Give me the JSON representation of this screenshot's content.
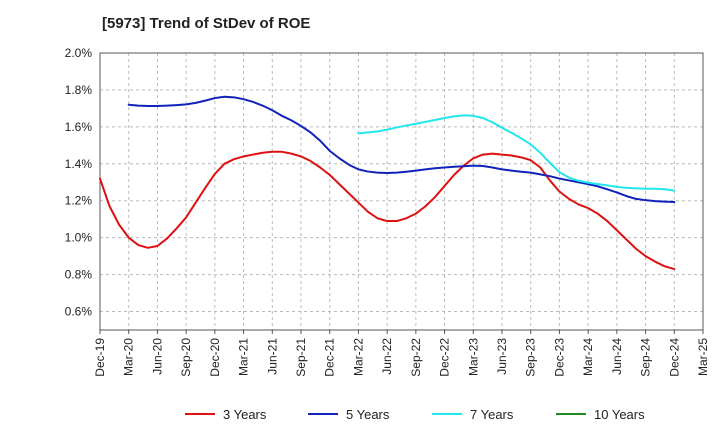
{
  "chart_data": {
    "type": "line",
    "title": "[5973]  Trend of StDev of ROE",
    "xlabel": "",
    "ylabel": "",
    "x_ticks": [
      "Dec-19",
      "Mar-20",
      "Jun-20",
      "Sep-20",
      "Dec-20",
      "Mar-21",
      "Jun-21",
      "Sep-21",
      "Dec-21",
      "Mar-22",
      "Jun-22",
      "Sep-22",
      "Dec-22",
      "Mar-23",
      "Jun-23",
      "Sep-23",
      "Dec-23",
      "Mar-24",
      "Jun-24",
      "Sep-24",
      "Dec-24",
      "Mar-25"
    ],
    "y_ticks": [
      "2.0%",
      "1.8%",
      "1.6%",
      "1.4%",
      "1.2%",
      "1.0%",
      "0.8%",
      "0.6%"
    ],
    "ylim": [
      0.5,
      2.0
    ],
    "y_unit": "%",
    "grid": "dashed both axes",
    "legend_position": "bottom",
    "series": [
      {
        "name": "3 Years",
        "color": "#dd1111",
        "points": [
          [
            "Dec-19",
            1.32
          ],
          [
            "Jan-20",
            1.17
          ],
          [
            "Feb-20",
            1.07
          ],
          [
            "Mar-20",
            1.0
          ],
          [
            "Apr-20",
            0.96
          ],
          [
            "May-20",
            0.945
          ],
          [
            "Jun-20",
            0.955
          ],
          [
            "Jul-20",
            0.995
          ],
          [
            "Aug-20",
            1.05
          ],
          [
            "Sep-20",
            1.11
          ],
          [
            "Oct-20",
            1.19
          ],
          [
            "Nov-20",
            1.27
          ],
          [
            "Dec-20",
            1.345
          ],
          [
            "Jan-21",
            1.4
          ],
          [
            "Feb-21",
            1.425
          ],
          [
            "Mar-21",
            1.44
          ],
          [
            "Apr-21",
            1.45
          ],
          [
            "May-21",
            1.46
          ],
          [
            "Jun-21",
            1.465
          ],
          [
            "Jul-21",
            1.465
          ],
          [
            "Aug-21",
            1.455
          ],
          [
            "Sep-21",
            1.44
          ],
          [
            "Oct-21",
            1.415
          ],
          [
            "Nov-21",
            1.38
          ],
          [
            "Dec-21",
            1.34
          ],
          [
            "Jan-22",
            1.29
          ],
          [
            "Feb-22",
            1.24
          ],
          [
            "Mar-22",
            1.19
          ],
          [
            "Apr-22",
            1.14
          ],
          [
            "May-22",
            1.105
          ],
          [
            "Jun-22",
            1.09
          ],
          [
            "Jul-22",
            1.09
          ],
          [
            "Aug-22",
            1.105
          ],
          [
            "Sep-22",
            1.13
          ],
          [
            "Oct-22",
            1.17
          ],
          [
            "Nov-22",
            1.22
          ],
          [
            "Dec-22",
            1.28
          ],
          [
            "Jan-23",
            1.34
          ],
          [
            "Feb-23",
            1.39
          ],
          [
            "Mar-23",
            1.43
          ],
          [
            "Apr-23",
            1.45
          ],
          [
            "May-23",
            1.455
          ],
          [
            "Jun-23",
            1.45
          ],
          [
            "Jul-23",
            1.445
          ],
          [
            "Aug-23",
            1.435
          ],
          [
            "Sep-23",
            1.42
          ],
          [
            "Oct-23",
            1.38
          ],
          [
            "Nov-23",
            1.31
          ],
          [
            "Dec-23",
            1.25
          ],
          [
            "Jan-24",
            1.21
          ],
          [
            "Feb-24",
            1.18
          ],
          [
            "Mar-24",
            1.16
          ],
          [
            "Apr-24",
            1.13
          ],
          [
            "May-24",
            1.09
          ],
          [
            "Jun-24",
            1.04
          ],
          [
            "Jul-24",
            0.99
          ],
          [
            "Aug-24",
            0.94
          ],
          [
            "Sep-24",
            0.9
          ],
          [
            "Oct-24",
            0.87
          ],
          [
            "Nov-24",
            0.845
          ],
          [
            "Dec-24",
            0.83
          ]
        ]
      },
      {
        "name": "5 Years",
        "color": "#1122bb",
        "points": [
          [
            "Mar-20",
            1.72
          ],
          [
            "Apr-20",
            1.715
          ],
          [
            "May-20",
            1.713
          ],
          [
            "Jun-20",
            1.713
          ],
          [
            "Jul-20",
            1.715
          ],
          [
            "Aug-20",
            1.718
          ],
          [
            "Sep-20",
            1.722
          ],
          [
            "Oct-20",
            1.73
          ],
          [
            "Nov-20",
            1.742
          ],
          [
            "Dec-20",
            1.756
          ],
          [
            "Jan-21",
            1.763
          ],
          [
            "Feb-21",
            1.76
          ],
          [
            "Mar-21",
            1.75
          ],
          [
            "Apr-21",
            1.735
          ],
          [
            "May-21",
            1.715
          ],
          [
            "Jun-21",
            1.69
          ],
          [
            "Jul-21",
            1.66
          ],
          [
            "Aug-21",
            1.635
          ],
          [
            "Sep-21",
            1.605
          ],
          [
            "Oct-21",
            1.57
          ],
          [
            "Nov-21",
            1.525
          ],
          [
            "Dec-21",
            1.47
          ],
          [
            "Jan-22",
            1.43
          ],
          [
            "Feb-22",
            1.395
          ],
          [
            "Mar-22",
            1.37
          ],
          [
            "Apr-22",
            1.358
          ],
          [
            "May-22",
            1.352
          ],
          [
            "Jun-22",
            1.35
          ],
          [
            "Jul-22",
            1.352
          ],
          [
            "Aug-22",
            1.357
          ],
          [
            "Sep-22",
            1.363
          ],
          [
            "Oct-22",
            1.37
          ],
          [
            "Nov-22",
            1.376
          ],
          [
            "Dec-22",
            1.38
          ],
          [
            "Jan-23",
            1.384
          ],
          [
            "Feb-23",
            1.387
          ],
          [
            "Mar-23",
            1.39
          ],
          [
            "Apr-23",
            1.388
          ],
          [
            "May-23",
            1.38
          ],
          [
            "Jun-23",
            1.37
          ],
          [
            "Jul-23",
            1.363
          ],
          [
            "Aug-23",
            1.357
          ],
          [
            "Sep-23",
            1.352
          ],
          [
            "Oct-23",
            1.343
          ],
          [
            "Nov-23",
            1.333
          ],
          [
            "Dec-23",
            1.32
          ],
          [
            "Jan-24",
            1.31
          ],
          [
            "Feb-24",
            1.3
          ],
          [
            "Mar-24",
            1.29
          ],
          [
            "Apr-24",
            1.278
          ],
          [
            "May-24",
            1.262
          ],
          [
            "Jun-24",
            1.245
          ],
          [
            "Jul-24",
            1.225
          ],
          [
            "Aug-24",
            1.21
          ],
          [
            "Sep-24",
            1.203
          ],
          [
            "Oct-24",
            1.198
          ],
          [
            "Nov-24",
            1.195
          ],
          [
            "Dec-24",
            1.193
          ]
        ]
      },
      {
        "name": "7 Years",
        "color": "#22e6ee",
        "points": [
          [
            "Mar-22",
            1.565
          ],
          [
            "Apr-22",
            1.57
          ],
          [
            "May-22",
            1.575
          ],
          [
            "Jun-22",
            1.585
          ],
          [
            "Jul-22",
            1.597
          ],
          [
            "Aug-22",
            1.607
          ],
          [
            "Sep-22",
            1.617
          ],
          [
            "Oct-22",
            1.627
          ],
          [
            "Nov-22",
            1.637
          ],
          [
            "Dec-22",
            1.648
          ],
          [
            "Jan-23",
            1.657
          ],
          [
            "Feb-23",
            1.662
          ],
          [
            "Mar-23",
            1.66
          ],
          [
            "Apr-23",
            1.648
          ],
          [
            "May-23",
            1.625
          ],
          [
            "Jun-23",
            1.595
          ],
          [
            "Jul-23",
            1.568
          ],
          [
            "Aug-23",
            1.538
          ],
          [
            "Sep-23",
            1.505
          ],
          [
            "Oct-23",
            1.46
          ],
          [
            "Nov-23",
            1.405
          ],
          [
            "Dec-23",
            1.355
          ],
          [
            "Jan-24",
            1.325
          ],
          [
            "Feb-24",
            1.308
          ],
          [
            "Mar-24",
            1.298
          ],
          [
            "Apr-24",
            1.29
          ],
          [
            "May-24",
            1.283
          ],
          [
            "Jun-24",
            1.275
          ],
          [
            "Jul-24",
            1.27
          ],
          [
            "Aug-24",
            1.267
          ],
          [
            "Sep-24",
            1.265
          ],
          [
            "Oct-24",
            1.265
          ],
          [
            "Nov-24",
            1.262
          ],
          [
            "Dec-24",
            1.255
          ]
        ]
      },
      {
        "name": "10 Years",
        "color": "#228822",
        "points": []
      }
    ]
  }
}
